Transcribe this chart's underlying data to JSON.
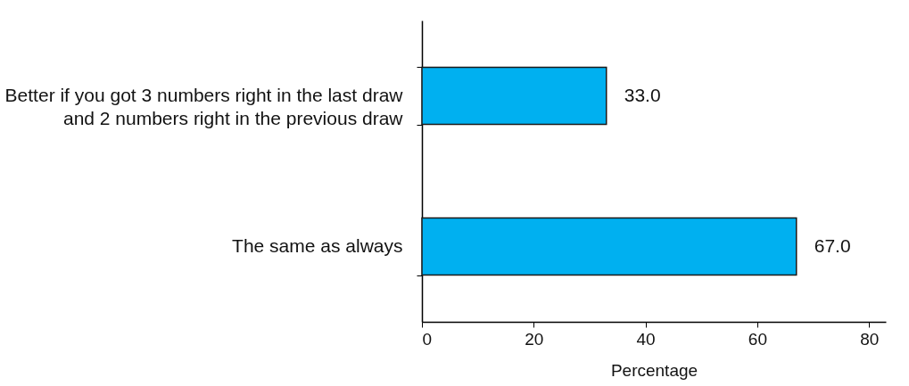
{
  "chart_data": {
    "type": "bar",
    "orientation": "horizontal",
    "xlabel": "Percentage",
    "categories": [
      "Better if you got 3 numbers right in the last draw and 2 numbers right in the previous draw",
      "The same as always"
    ],
    "values": [
      33.0,
      67.0
    ],
    "value_labels": [
      "33.0",
      "67.0"
    ],
    "color": "#00b0f0",
    "xlim": [
      0,
      83
    ],
    "xticks": [
      0,
      20,
      40,
      60,
      80
    ],
    "grid": false
  }
}
